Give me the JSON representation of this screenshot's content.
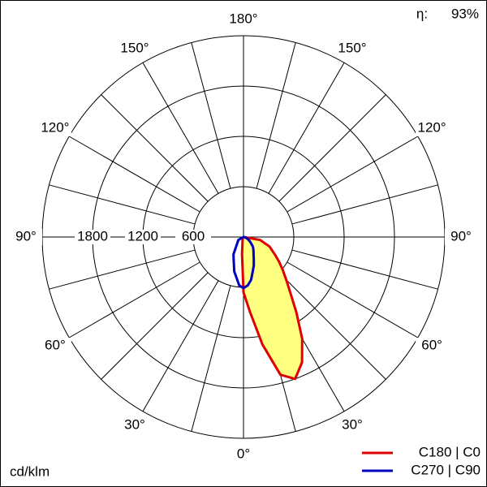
{
  "chart_data": {
    "type": "polar",
    "unit_label": "cd/klm",
    "efficiency_label": "η:",
    "efficiency": "93%",
    "rlim": [
      0,
      2400
    ],
    "rticks": [
      600,
      1200,
      1800
    ],
    "angle_ticks": [
      {
        "value": 0,
        "label": "0°"
      },
      {
        "value": 30,
        "label": "30°"
      },
      {
        "value": 60,
        "label": "60°"
      },
      {
        "value": 90,
        "label": "90°"
      },
      {
        "value": 120,
        "label": "120°"
      },
      {
        "value": 150,
        "label": "150°"
      },
      {
        "value": 180,
        "label": "180°"
      }
    ],
    "theta": [
      -90,
      -60,
      -30,
      -15,
      -5,
      0,
      5,
      10,
      15,
      20,
      25,
      30,
      35,
      40,
      45,
      50,
      55,
      60,
      70,
      80,
      90
    ],
    "series": [
      {
        "name": "C180 | C0",
        "color": "#e00000",
        "fill": "#ffff80",
        "values": [
          0,
          10,
          20,
          40,
          200,
          660,
          900,
          1300,
          1700,
          1800,
          1650,
          1400,
          1100,
          870,
          720,
          610,
          520,
          440,
          330,
          200,
          0
        ]
      },
      {
        "name": "C270 | C90",
        "color": "#0000c0",
        "values": [
          0,
          70,
          240,
          425,
          580,
          610,
          580,
          520,
          425,
          360,
          290,
          240,
          210,
          180,
          155,
          120,
          95,
          70,
          40,
          15,
          0
        ]
      }
    ]
  }
}
